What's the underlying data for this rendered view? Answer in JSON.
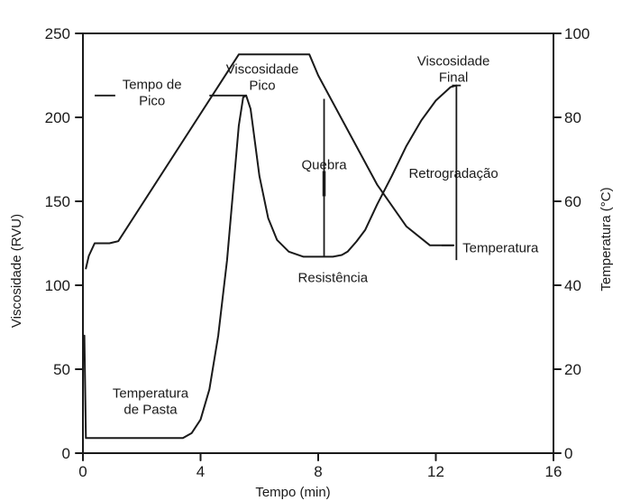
{
  "chart_data": {
    "type": "line",
    "title": "",
    "xlabel": "Tempo (min)",
    "ylabel": "Viscosidade (RVU)",
    "y2label": "Temperatura (°C)",
    "xlim": [
      0,
      16
    ],
    "ylim": [
      0,
      250
    ],
    "y2lim": [
      0,
      100
    ],
    "xticks": [
      0,
      4,
      8,
      12,
      16
    ],
    "yticks": [
      0,
      50,
      100,
      150,
      200,
      250
    ],
    "y2ticks": [
      0,
      20,
      40,
      60,
      80,
      100
    ],
    "grid": false,
    "legend": "none",
    "series": [
      {
        "axis": "left",
        "x": [
          0.05,
          0.1,
          0.5,
          1,
          2,
          3,
          3.4,
          3.7,
          4.0,
          4.3,
          4.6,
          4.9,
          5.1,
          5.3,
          5.45,
          5.55,
          5.7,
          5.85,
          6.0,
          6.3,
          6.6,
          7.0,
          7.5,
          8.0,
          8.5,
          8.8,
          9.0,
          9.3,
          9.6,
          10.0,
          10.5,
          11.0,
          11.5,
          12.0,
          12.5,
          12.7
        ],
        "y": [
          70,
          9,
          9,
          9,
          9,
          9,
          9,
          12,
          20,
          38,
          70,
          115,
          155,
          195,
          212,
          213,
          205,
          185,
          165,
          140,
          127,
          120,
          117,
          117,
          117,
          118,
          120,
          126,
          133,
          148,
          165,
          183,
          198,
          210,
          218,
          219
        ]
      },
      {
        "axis": "right",
        "x": [
          0.1,
          0.2,
          0.4,
          0.6,
          0.9,
          1.2,
          5.3,
          7.7,
          8.0,
          9.0,
          10.0,
          11.0,
          11.8,
          12.3,
          12.6
        ],
        "y": [
          44,
          47,
          50,
          50,
          50,
          50.5,
          95,
          95,
          90,
          77,
          64,
          54,
          49.5,
          49.5,
          49.5
        ]
      }
    ],
    "annotations": {
      "tempo_pico": "Tempo de\nPico",
      "visc_pico": "Viscosidade\nPico",
      "quebra": "Quebra",
      "visc_final": "Viscosidade\nFinal",
      "retrogradacao": "Retrogradação",
      "temperatura": "Temperatura",
      "resistencia": "Resistência",
      "temp_pasta": "Temperatura\nde Pasta"
    }
  }
}
